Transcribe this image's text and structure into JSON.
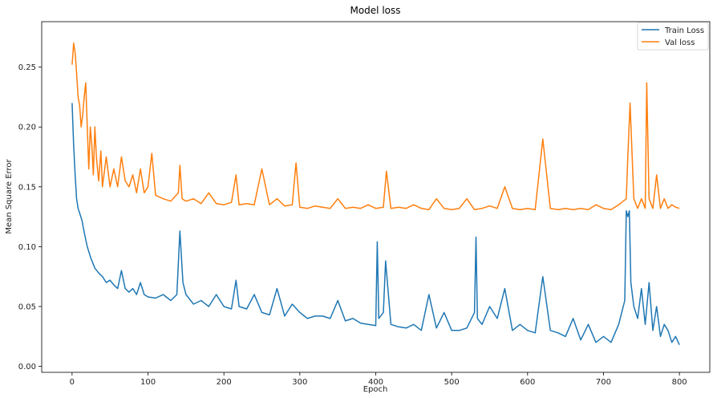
{
  "chart_data": {
    "type": "line",
    "title": "Model loss",
    "xlabel": "Epoch",
    "ylabel": "Mean Square Error",
    "xlim": [
      -40,
      840
    ],
    "ylim": [
      -0.005,
      0.288
    ],
    "xticks": [
      0,
      100,
      200,
      300,
      400,
      500,
      600,
      700,
      800
    ],
    "yticks": [
      0.0,
      0.05,
      0.1,
      0.15,
      0.2,
      0.25
    ],
    "ytick_labels": [
      "0.00",
      "0.05",
      "0.10",
      "0.15",
      "0.20",
      "0.25"
    ],
    "legend": {
      "placement": "top-right",
      "entries": [
        "Train Loss",
        "Val loss"
      ]
    },
    "grid": false,
    "series": [
      {
        "name": "Train Loss",
        "color": "#1f77b4",
        "x": [
          0,
          2,
          4,
          6,
          8,
          10,
          13,
          16,
          20,
          25,
          30,
          35,
          40,
          45,
          50,
          55,
          60,
          65,
          70,
          75,
          80,
          85,
          90,
          95,
          100,
          110,
          120,
          130,
          138,
          142,
          146,
          150,
          160,
          170,
          180,
          190,
          200,
          210,
          216,
          220,
          230,
          240,
          250,
          260,
          270,
          280,
          290,
          300,
          310,
          320,
          330,
          340,
          350,
          360,
          370,
          380,
          390,
          400,
          402,
          404,
          410,
          413,
          420,
          430,
          440,
          450,
          460,
          470,
          480,
          490,
          500,
          510,
          520,
          530,
          532,
          534,
          540,
          550,
          560,
          570,
          580,
          590,
          600,
          610,
          620,
          630,
          640,
          650,
          660,
          670,
          680,
          690,
          700,
          710,
          720,
          728,
          730,
          732,
          734,
          736,
          740,
          745,
          750,
          755,
          760,
          765,
          770,
          775,
          780,
          785,
          790,
          795,
          800
        ],
        "values": [
          0.22,
          0.185,
          0.16,
          0.14,
          0.132,
          0.128,
          0.122,
          0.112,
          0.1,
          0.09,
          0.082,
          0.078,
          0.075,
          0.07,
          0.072,
          0.068,
          0.065,
          0.08,
          0.065,
          0.062,
          0.065,
          0.06,
          0.07,
          0.06,
          0.058,
          0.057,
          0.06,
          0.055,
          0.06,
          0.113,
          0.07,
          0.06,
          0.052,
          0.055,
          0.05,
          0.06,
          0.05,
          0.048,
          0.072,
          0.05,
          0.048,
          0.06,
          0.045,
          0.043,
          0.065,
          0.042,
          0.052,
          0.045,
          0.04,
          0.042,
          0.042,
          0.04,
          0.055,
          0.038,
          0.04,
          0.036,
          0.035,
          0.034,
          0.104,
          0.04,
          0.045,
          0.088,
          0.035,
          0.033,
          0.032,
          0.035,
          0.03,
          0.06,
          0.032,
          0.045,
          0.03,
          0.03,
          0.032,
          0.045,
          0.108,
          0.04,
          0.035,
          0.05,
          0.04,
          0.065,
          0.03,
          0.035,
          0.03,
          0.028,
          0.075,
          0.03,
          0.028,
          0.025,
          0.04,
          0.022,
          0.035,
          0.02,
          0.025,
          0.02,
          0.035,
          0.055,
          0.13,
          0.125,
          0.13,
          0.07,
          0.05,
          0.04,
          0.065,
          0.035,
          0.07,
          0.03,
          0.05,
          0.025,
          0.035,
          0.03,
          0.02,
          0.025,
          0.018
        ]
      },
      {
        "name": "Val loss",
        "color": "#ff7f0e",
        "x": [
          0,
          1,
          2,
          4,
          6,
          8,
          10,
          12,
          14,
          16,
          18,
          20,
          22,
          24,
          26,
          28,
          30,
          32,
          35,
          38,
          40,
          45,
          50,
          55,
          60,
          65,
          70,
          75,
          80,
          85,
          90,
          95,
          100,
          105,
          110,
          120,
          130,
          140,
          142,
          145,
          150,
          160,
          170,
          180,
          190,
          200,
          210,
          216,
          220,
          230,
          240,
          250,
          260,
          270,
          280,
          290,
          295,
          300,
          310,
          320,
          330,
          340,
          350,
          360,
          370,
          380,
          390,
          400,
          410,
          414,
          420,
          430,
          440,
          450,
          460,
          470,
          480,
          490,
          500,
          510,
          520,
          530,
          540,
          550,
          560,
          570,
          580,
          590,
          600,
          610,
          620,
          630,
          640,
          650,
          660,
          670,
          680,
          690,
          700,
          710,
          720,
          730,
          732,
          735,
          740,
          745,
          750,
          755,
          757,
          760,
          765,
          770,
          775,
          780,
          785,
          790,
          795,
          800
        ],
        "values": [
          0.252,
          0.26,
          0.27,
          0.262,
          0.245,
          0.225,
          0.218,
          0.2,
          0.21,
          0.225,
          0.237,
          0.2,
          0.165,
          0.2,
          0.185,
          0.16,
          0.2,
          0.175,
          0.155,
          0.18,
          0.15,
          0.175,
          0.15,
          0.165,
          0.15,
          0.175,
          0.155,
          0.15,
          0.16,
          0.145,
          0.165,
          0.145,
          0.15,
          0.178,
          0.143,
          0.14,
          0.138,
          0.145,
          0.168,
          0.14,
          0.138,
          0.14,
          0.136,
          0.145,
          0.136,
          0.135,
          0.137,
          0.16,
          0.135,
          0.136,
          0.135,
          0.165,
          0.135,
          0.14,
          0.134,
          0.135,
          0.17,
          0.133,
          0.132,
          0.134,
          0.133,
          0.132,
          0.14,
          0.132,
          0.133,
          0.132,
          0.135,
          0.132,
          0.133,
          0.163,
          0.132,
          0.133,
          0.132,
          0.135,
          0.132,
          0.131,
          0.14,
          0.132,
          0.131,
          0.132,
          0.14,
          0.131,
          0.132,
          0.134,
          0.132,
          0.15,
          0.132,
          0.131,
          0.132,
          0.131,
          0.19,
          0.132,
          0.131,
          0.132,
          0.131,
          0.132,
          0.131,
          0.135,
          0.132,
          0.131,
          0.135,
          0.14,
          0.175,
          0.22,
          0.14,
          0.132,
          0.14,
          0.132,
          0.237,
          0.14,
          0.132,
          0.16,
          0.132,
          0.14,
          0.132,
          0.135,
          0.133,
          0.132
        ]
      }
    ]
  }
}
